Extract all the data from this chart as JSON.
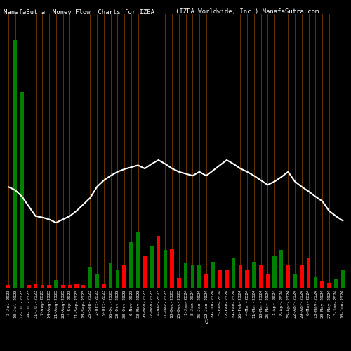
{
  "title_left": "ManafaSutra  Money Flow  Charts for IZEA",
  "title_right": "(IZEA Worldwide, Inc.) ManafaSutra.com",
  "bg_color": "#000000",
  "grid_color": "#8B4500",
  "n_bars": 50,
  "bar_colors": [
    "red",
    "green",
    "green",
    "red",
    "red",
    "red",
    "red",
    "green",
    "red",
    "red",
    "red",
    "red",
    "green",
    "green",
    "red",
    "green",
    "green",
    "red",
    "green",
    "green",
    "red",
    "green",
    "red",
    "green",
    "red",
    "red",
    "green",
    "green",
    "green",
    "red",
    "green",
    "red",
    "red",
    "green",
    "red",
    "red",
    "green",
    "red",
    "red",
    "green",
    "green",
    "red",
    "green",
    "red",
    "red",
    "green",
    "red",
    "red",
    "green",
    "green"
  ],
  "bar_heights": [
    4,
    380,
    300,
    4,
    5,
    4,
    4,
    12,
    4,
    4,
    5,
    4,
    32,
    22,
    5,
    38,
    28,
    35,
    70,
    85,
    50,
    65,
    80,
    58,
    60,
    15,
    38,
    34,
    34,
    22,
    40,
    28,
    28,
    46,
    34,
    28,
    40,
    34,
    22,
    50,
    58,
    34,
    22,
    34,
    46,
    17,
    11,
    8,
    14,
    28
  ],
  "line_values": [
    155,
    150,
    140,
    125,
    110,
    108,
    105,
    100,
    105,
    110,
    118,
    128,
    138,
    155,
    165,
    172,
    178,
    182,
    185,
    188,
    183,
    190,
    196,
    190,
    183,
    178,
    175,
    172,
    178,
    172,
    180,
    188,
    196,
    190,
    183,
    178,
    172,
    165,
    158,
    163,
    170,
    178,
    163,
    155,
    148,
    140,
    133,
    118,
    110,
    103
  ],
  "line_color": "#ffffff",
  "line_width": 1.5,
  "title_fontsize": 6.5,
  "tick_fontsize": 4.5,
  "ylim_max": 420,
  "dates": [
    "3-Jul-2023",
    "10-Jul-2023",
    "17-Jul-2023",
    "24-Jul-2023",
    "31-Jul-2023",
    "7-Aug-2023",
    "14-Aug-2023",
    "21-Aug-2023",
    "28-Aug-2023",
    "4-Sep-2023",
    "11-Sep-2023",
    "18-Sep-2023",
    "25-Sep-2023",
    "2-Oct-2023",
    "9-Oct-2023",
    "16-Oct-2023",
    "23-Oct-2023",
    "30-Oct-2023",
    "6-Nov-2023",
    "13-Nov-2023",
    "20-Nov-2023",
    "27-Nov-2023",
    "4-Dec-2023",
    "11-Dec-2023",
    "18-Dec-2023",
    "25-Dec-2023",
    "1-Jan-2024",
    "8-Jan-2024",
    "15-Jan-2024",
    "22-Jan-2024",
    "29-Jan-2024",
    "5-Feb-2024",
    "12-Feb-2024",
    "19-Feb-2024",
    "26-Feb-2024",
    "4-Mar-2024",
    "11-Mar-2024",
    "18-Mar-2024",
    "25-Mar-2024",
    "1-Apr-2024",
    "8-Apr-2024",
    "15-Apr-2024",
    "22-Apr-2024",
    "29-Apr-2024",
    "6-May-2024",
    "13-May-2024",
    "20-May-2024",
    "27-May-2024",
    "3-Jun-2024",
    "10-Jun-2024"
  ]
}
